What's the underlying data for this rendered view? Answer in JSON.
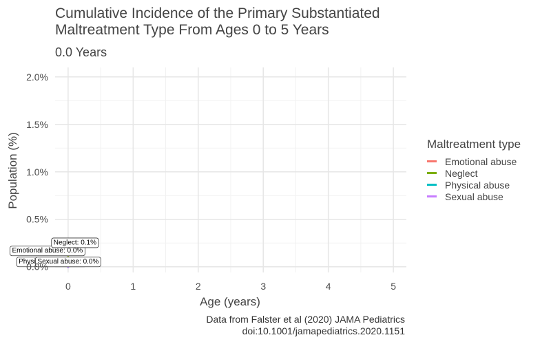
{
  "chart_data": {
    "type": "line",
    "title_line1": "Cumulative Incidence of the Primary Substantiated",
    "title_line2": "Maltreatment Type From Ages 0 to 5 Years",
    "subtitle": "0.0 Years",
    "xlabel": "Age (years)",
    "ylabel": "Population (%)",
    "xlim": [
      -0.2,
      5.2
    ],
    "ylim": [
      -0.0006,
      0.021
    ],
    "x_ticks": [
      0,
      1,
      2,
      3,
      4,
      5
    ],
    "x_tick_labels": [
      "0",
      "1",
      "2",
      "3",
      "4",
      "5"
    ],
    "y_ticks": [
      0,
      0.005,
      0.01,
      0.015,
      0.02
    ],
    "y_tick_labels": [
      "0.0%",
      "0.5%",
      "1.0%",
      "1.5%",
      "2.0%"
    ],
    "grid": true,
    "legend_title": "Maltreatment type",
    "legend_position": "right",
    "series": [
      {
        "name": "Emotional abuse",
        "color": "#F8766D",
        "x": [
          0
        ],
        "y": [
          0.0
        ],
        "label": "Emotional abuse: 0.0%"
      },
      {
        "name": "Neglect",
        "color": "#7CAE00",
        "x": [
          0
        ],
        "y": [
          0.001
        ],
        "label": "Neglect: 0.1%"
      },
      {
        "name": "Physical abuse",
        "color": "#00BFC4",
        "x": [
          0
        ],
        "y": [
          0.0
        ],
        "label": "Physical abuse: 0.0%"
      },
      {
        "name": "Sexual abuse",
        "color": "#C77CFF",
        "x": [
          0
        ],
        "y": [
          0.0
        ],
        "label": "Sexual abuse: 0.0%"
      }
    ],
    "caption_line1": "Data from Falster et al (2020) JAMA Pediatrics",
    "caption_line2": "doi:10.1001/jamapediatrics.2020.1151"
  }
}
